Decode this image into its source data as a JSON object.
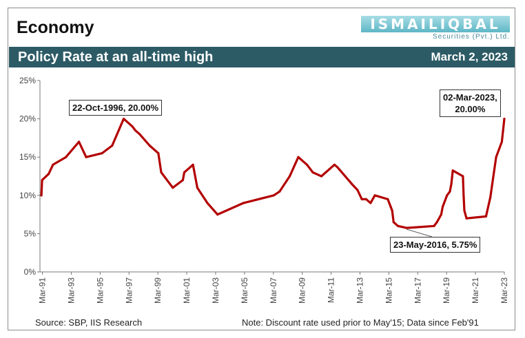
{
  "header": {
    "section": "Economy",
    "logo_name": "ISMAILIQBAL",
    "logo_sub": "Securities (Pvt.) Ltd.",
    "title": "Policy Rate at an all-time high",
    "date": "March 2, 2023"
  },
  "footer": {
    "source": "Source: SBP, IIS Research",
    "note": "Note: Discount rate used prior to May'15; Data since Feb'91"
  },
  "colors": {
    "line": "#b30000",
    "banner": "#2c5b66"
  },
  "chart_data": {
    "type": "line",
    "title": "Policy Rate at an all-time high",
    "xlabel": "",
    "ylabel": "",
    "xlim": [
      1991.0,
      2023.17
    ],
    "ylim": [
      0,
      25
    ],
    "y_ticks": [
      0,
      5,
      10,
      15,
      20,
      25
    ],
    "y_tick_labels": [
      "0%",
      "5%",
      "10%",
      "15%",
      "20%",
      "25%"
    ],
    "x_tick_years": [
      1991,
      1993,
      1995,
      1997,
      1999,
      2001,
      2003,
      2005,
      2007,
      2009,
      2011,
      2013,
      2015,
      2017,
      2019,
      2021,
      2023
    ],
    "x_tick_labels": [
      "Mar-91",
      "Mar-93",
      "Mar-95",
      "Mar-97",
      "Mar-99",
      "Mar-01",
      "Mar-03",
      "Mar-05",
      "Mar-07",
      "Mar-09",
      "Mar-11",
      "Mar-13",
      "Mar-15",
      "Mar-17",
      "Mar-19",
      "Mar-21",
      "Mar-23"
    ],
    "grid": false,
    "series": [
      {
        "name": "Policy Rate",
        "x": [
          1991.1,
          1991.15,
          1991.6,
          1991.9,
          1992.8,
          1993.7,
          1994.2,
          1995.3,
          1996.0,
          1996.8,
          1997.4,
          1997.6,
          1997.9,
          1998.6,
          1999.2,
          1999.4,
          2000.2,
          2000.9,
          2001.0,
          2001.6,
          2001.9,
          2002.6,
          2003.3,
          2005.1,
          2007.2,
          2007.6,
          2008.3,
          2008.9,
          2009.2,
          2009.5,
          2009.9,
          2010.5,
          2010.8,
          2011.4,
          2011.6,
          2012.6,
          2013.0,
          2013.3,
          2013.6,
          2013.9,
          2014.2,
          2015.1,
          2015.3,
          2015.4,
          2015.5,
          2015.8,
          2016.4,
          2018.3,
          2018.5,
          2018.8,
          2018.9,
          2019.2,
          2019.4,
          2019.5,
          2019.6,
          2020.3,
          2020.35,
          2020.4,
          2020.55,
          2021.9,
          2022.2,
          2022.6,
          2023.0,
          2023.17
        ],
        "values": [
          10.0,
          12.0,
          12.8,
          14.0,
          15.0,
          17.0,
          15.0,
          15.5,
          16.5,
          20.0,
          19.0,
          18.5,
          18.0,
          16.5,
          15.5,
          13.0,
          11.0,
          12.0,
          13.0,
          14.0,
          11.0,
          9.0,
          7.5,
          9.0,
          10.0,
          10.5,
          12.5,
          15.0,
          14.5,
          14.0,
          13.0,
          12.5,
          13.0,
          14.0,
          13.7,
          11.5,
          10.7,
          9.5,
          9.5,
          9.0,
          10.0,
          9.5,
          8.5,
          8.0,
          6.5,
          6.0,
          5.75,
          6.0,
          6.5,
          7.5,
          8.5,
          10.0,
          10.5,
          11.5,
          13.25,
          12.5,
          10.0,
          8.0,
          7.0,
          7.25,
          9.75,
          15.0,
          17.0,
          20.0
        ]
      }
    ],
    "annotations": [
      {
        "label": "22-Oct-1996, 20.00%",
        "x": 1996.8,
        "y": 20.0
      },
      {
        "label_line1": "02-Mar-2023,",
        "label_line2": "20.00%",
        "x": 2023.17,
        "y": 20.0
      },
      {
        "label": "23-May-2016, 5.75%",
        "x": 2016.4,
        "y": 5.75
      }
    ]
  }
}
